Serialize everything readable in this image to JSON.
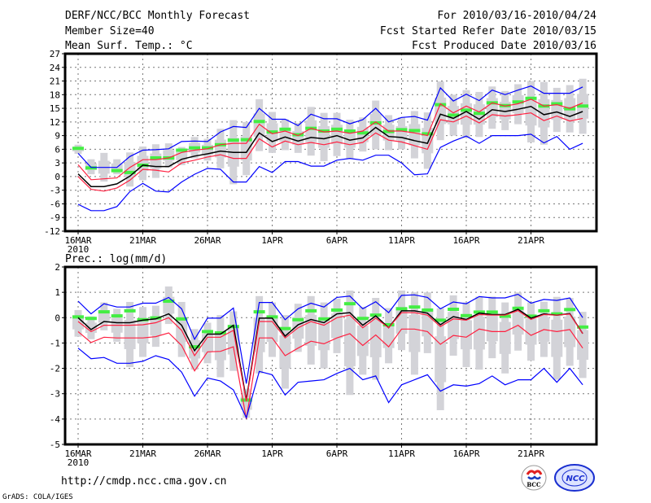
{
  "header": {
    "title": "DERF/NCC/BCC Monthly Forecast",
    "member_size": "Member Size=40",
    "variable": "Mean Surf. Temp.: °C",
    "period": "For 2010/03/16-2010/04/24",
    "start_date": "Fcst Started Refer Date 2010/03/15",
    "produced_date": "Fcst Produced Date 2010/03/16"
  },
  "footer": {
    "url": "http://cmdp.ncc.cma.gov.cn",
    "credit": "GrADS: COLA/IGES",
    "logos": [
      "BCC",
      "NCC"
    ]
  },
  "colors": {
    "mean": "#000000",
    "spread": "#ff2040",
    "extreme": "#0000ff",
    "box": "#d3d3d8",
    "marker": "#44ee44"
  },
  "chart_data": [
    {
      "type": "line",
      "title": "Mean Surf. Temp.: °C",
      "ylim": [
        -12,
        27
      ],
      "yticks": [
        "27",
        "24",
        "21",
        "18",
        "15",
        "12",
        "9",
        "6",
        "3",
        "0",
        "-3",
        "-6",
        "-9",
        "-12"
      ],
      "xtick_days": [
        0,
        5,
        10,
        15,
        20,
        25,
        30,
        35
      ],
      "xtick_labels": [
        "16MAR",
        "21MAR",
        "26MAR",
        "1APR",
        "6APR",
        "11APR",
        "16APR",
        "21APR"
      ],
      "xyear": "2010",
      "ndays": 40,
      "grid": true,
      "series": [
        {
          "name": "blue-upper",
          "color": "extreme",
          "values": [
            5.1,
            2.0,
            2.0,
            2.0,
            4.4,
            5.8,
            5.9,
            6.1,
            7.7,
            7.8,
            7.7,
            9.8,
            11.0,
            10.8,
            15.0,
            12.6,
            12.6,
            11.2,
            13.7,
            12.7,
            12.7,
            11.6,
            12.5,
            15.0,
            12.0,
            13.0,
            13.2,
            12.4,
            19.5,
            16.6,
            18.1,
            16.7,
            19.0,
            18.0,
            19.0,
            19.9,
            18.3,
            18.3,
            18.3,
            19.7
          ]
        },
        {
          "name": "red-upper",
          "color": "spread",
          "values": [
            2.6,
            -0.7,
            -0.5,
            -0.3,
            2.0,
            3.7,
            3.7,
            4.1,
            5.3,
            5.8,
            6.1,
            7.0,
            7.3,
            7.3,
            11.5,
            9.4,
            10.0,
            9.0,
            10.6,
            9.8,
            10.0,
            9.5,
            10.0,
            12.0,
            10.0,
            10.0,
            9.6,
            9.0,
            16.0,
            14.0,
            15.5,
            14.2,
            16.2,
            15.5,
            16.0,
            17.0,
            15.5,
            15.8,
            15.0,
            16.2
          ]
        },
        {
          "name": "mean",
          "color": "mean",
          "values": [
            0.6,
            -2.2,
            -2.2,
            -1.6,
            0.1,
            2.5,
            2.2,
            2.2,
            3.8,
            4.5,
            5.0,
            5.6,
            5.3,
            5.3,
            9.6,
            7.7,
            8.7,
            7.8,
            8.6,
            8.3,
            9.0,
            8.0,
            8.5,
            10.8,
            8.8,
            8.6,
            7.9,
            7.3,
            13.7,
            12.8,
            14.3,
            12.6,
            14.7,
            14.3,
            14.8,
            15.4,
            13.6,
            14.2,
            13.2,
            14.3
          ]
        },
        {
          "name": "red-lower",
          "color": "spread",
          "values": [
            0.0,
            -2.8,
            -3.2,
            -2.5,
            -0.8,
            1.6,
            1.4,
            1.0,
            3.0,
            3.6,
            4.3,
            4.8,
            4.0,
            4.0,
            8.3,
            6.5,
            7.8,
            7.0,
            7.5,
            7.0,
            7.6,
            7.0,
            7.5,
            9.6,
            8.0,
            7.6,
            6.8,
            6.0,
            12.5,
            12.0,
            13.3,
            11.8,
            13.6,
            13.3,
            13.6,
            14.0,
            12.3,
            13.3,
            12.2,
            12.8
          ]
        },
        {
          "name": "blue-lower",
          "color": "extreme",
          "values": [
            -6.1,
            -7.5,
            -7.5,
            -6.6,
            -3.3,
            -1.5,
            -3.2,
            -3.4,
            -1.2,
            0.5,
            1.8,
            1.6,
            -1.2,
            -1.2,
            2.2,
            0.9,
            3.3,
            3.3,
            2.3,
            2.3,
            3.6,
            4.0,
            3.6,
            4.7,
            4.7,
            3.0,
            0.4,
            0.6,
            6.4,
            7.8,
            8.9,
            7.3,
            9.0,
            9.0,
            9.0,
            9.3,
            7.4,
            8.8,
            6.0,
            7.3
          ]
        }
      ],
      "markers": [
        6.2,
        1.9,
        null,
        1.3,
        0.9,
        2.5,
        4.1,
        4.1,
        5.8,
        6.3,
        6.3,
        7.0,
        8.0,
        8.1,
        12.1,
        9.8,
        10.4,
        9.2,
        10.6,
        10.0,
        10.4,
        10.0,
        9.6,
        11.8,
        9.9,
        10.3,
        10.1,
        9.4,
        15.8,
        13.5,
        14.6,
        13.9,
        16.2,
        15.6,
        16.4,
        17.2,
        15.5,
        16.0,
        14.9,
        15.5
      ],
      "boxes": [
        [
          5,
          7
        ],
        [
          0.5,
          3.8
        ],
        [
          -1.1,
          5.2
        ],
        [
          0.5,
          3.8
        ],
        [
          -2.2,
          5.3
        ],
        [
          -0.8,
          6.6
        ],
        [
          -0.3,
          7.1
        ],
        [
          2,
          7.3
        ],
        [
          2.5,
          6.5
        ],
        [
          4,
          8.7
        ],
        [
          3.5,
          8.3
        ],
        [
          1.8,
          10.5
        ],
        [
          -1.7,
          12.4
        ],
        [
          0.3,
          12
        ],
        [
          5.6,
          17
        ],
        [
          5.2,
          14.2
        ],
        [
          5.8,
          12.6
        ],
        [
          5.2,
          11.8
        ],
        [
          4.6,
          15.3
        ],
        [
          3.4,
          14
        ],
        [
          4.5,
          14
        ],
        [
          4.0,
          12.5
        ],
        [
          5.5,
          13.0
        ],
        [
          6,
          16.7
        ],
        [
          5.8,
          13.5
        ],
        [
          6,
          13
        ],
        [
          4.0,
          14.4
        ],
        [
          1.7,
          14.1
        ],
        [
          8,
          20.9
        ],
        [
          9,
          18
        ],
        [
          8.5,
          19
        ],
        [
          8.7,
          18.6
        ],
        [
          10.5,
          19.8
        ],
        [
          10.2,
          18.8
        ],
        [
          11.5,
          20.3
        ],
        [
          7.5,
          21
        ],
        [
          7,
          20.8
        ],
        [
          9.8,
          19.5
        ],
        [
          9.7,
          20.1
        ],
        [
          9.4,
          21.5
        ]
      ]
    },
    {
      "type": "line",
      "title": "Prec.: log(mm/d)",
      "ylim": [
        -5,
        2
      ],
      "yticks": [
        "2",
        "1",
        "0",
        "-1",
        "-2",
        "-3",
        "-4",
        "-5"
      ],
      "xtick_days": [
        0,
        5,
        10,
        15,
        20,
        25,
        30,
        35
      ],
      "xtick_labels": [
        "16MAR",
        "21MAR",
        "26MAR",
        "1APR",
        "6APR",
        "11APR",
        "16APR",
        "21APR"
      ],
      "xyear": "2010",
      "ndays": 40,
      "grid": true,
      "series": [
        {
          "name": "blue-upper",
          "color": "extreme",
          "values": [
            0.65,
            0.15,
            0.55,
            0.42,
            0.42,
            0.57,
            0.57,
            0.8,
            0.35,
            -0.85,
            -0.02,
            -0.02,
            0.38,
            -2.6,
            0.6,
            0.6,
            -0.08,
            0.35,
            0.57,
            0.42,
            0.8,
            0.85,
            0.35,
            0.63,
            0.2,
            0.88,
            0.9,
            0.8,
            0.35,
            0.62,
            0.55,
            0.83,
            0.78,
            0.78,
            0.92,
            0.57,
            0.72,
            0.68,
            0.78,
            0.0
          ]
        },
        {
          "name": "mean",
          "color": "mean",
          "values": [
            0.0,
            -0.47,
            -0.15,
            -0.2,
            -0.2,
            -0.1,
            -0.05,
            0.15,
            -0.3,
            -1.3,
            -0.65,
            -0.65,
            -0.3,
            -3.25,
            -0.02,
            -0.02,
            -0.73,
            -0.28,
            -0.07,
            -0.2,
            0.15,
            0.2,
            -0.3,
            0.07,
            -0.4,
            0.27,
            0.27,
            0.18,
            -0.28,
            0.04,
            -0.07,
            0.18,
            0.12,
            0.12,
            0.33,
            -0.02,
            0.15,
            0.1,
            0.16,
            -0.63
          ]
        },
        {
          "name": "red-upper",
          "color": "spread",
          "values": [
            -0.15,
            -0.55,
            -0.3,
            -0.3,
            -0.3,
            -0.28,
            -0.2,
            0.0,
            -0.5,
            -1.5,
            -0.77,
            -0.77,
            -0.5,
            -3.3,
            -0.15,
            -0.15,
            -0.8,
            -0.4,
            -0.15,
            -0.3,
            0.0,
            0.1,
            -0.4,
            -0.02,
            -0.4,
            0.2,
            0.2,
            0.1,
            -0.35,
            -0.05,
            -0.1,
            0.12,
            0.1,
            0.1,
            0.28,
            -0.07,
            0.12,
            0.1,
            0.14,
            -0.63
          ]
        },
        {
          "name": "red-lower",
          "color": "spread",
          "values": [
            -0.55,
            -0.98,
            -0.77,
            -0.8,
            -0.8,
            -0.8,
            -0.75,
            -0.6,
            -1.1,
            -2.1,
            -1.35,
            -1.33,
            -1.15,
            -4.0,
            -0.8,
            -0.8,
            -1.5,
            -1.2,
            -0.93,
            -1.03,
            -0.8,
            -0.63,
            -1.1,
            -0.68,
            -1.15,
            -0.45,
            -0.45,
            -0.55,
            -1.05,
            -0.7,
            -0.77,
            -0.45,
            -0.55,
            -0.55,
            -0.3,
            -0.7,
            -0.47,
            -0.55,
            -0.47,
            -1.2
          ]
        },
        {
          "name": "blue-lower",
          "color": "extreme",
          "values": [
            -1.2,
            -1.62,
            -1.57,
            -1.8,
            -1.8,
            -1.72,
            -1.5,
            -1.65,
            -2.15,
            -3.1,
            -2.38,
            -2.5,
            -2.85,
            -3.95,
            -2.12,
            -2.25,
            -3.05,
            -2.55,
            -2.5,
            -2.45,
            -2.2,
            -2.0,
            -2.45,
            -2.3,
            -3.35,
            -2.65,
            -2.45,
            -2.25,
            -2.9,
            -2.65,
            -2.7,
            -2.6,
            -2.3,
            -2.65,
            -2.45,
            -2.45,
            -2.0,
            -2.55,
            -2.0,
            -2.65
          ]
        }
      ],
      "markers": [
        0.03,
        -0.03,
        0.23,
        0.07,
        0.27,
        -0.08,
        -0.01,
        0.65,
        -0.05,
        -1.15,
        -0.55,
        -0.6,
        -0.35,
        -3.25,
        0.23,
        0.03,
        -0.43,
        -0.08,
        0.27,
        -0.05,
        0.3,
        0.55,
        -0.03,
        0.1,
        -0.28,
        0.35,
        0.42,
        0.3,
        -0.1,
        0.33,
        0.08,
        0.22,
        0.22,
        0.06,
        0.37,
        0.06,
        0.27,
        0.15,
        0.32,
        -0.37
      ],
      "boxes": [
        [
          -0.75,
          0.3
        ],
        [
          -0.85,
          0.05
        ],
        [
          -0.5,
          0.6
        ],
        [
          -0.95,
          0.35
        ],
        [
          -1.95,
          0.62
        ],
        [
          -1.55,
          0.42
        ],
        [
          -1.15,
          0.47
        ],
        [
          -0.25,
          1.23
        ],
        [
          -1.55,
          0.62
        ],
        [
          -2.05,
          -0.45
        ],
        [
          -1.8,
          -0.2
        ],
        [
          -2.35,
          0.1
        ],
        [
          -2.1,
          0.25
        ],
        [
          -3.95,
          -2.8
        ],
        [
          -2.2,
          0.85
        ],
        [
          -1.55,
          0.6
        ],
        [
          -2.8,
          0.1
        ],
        [
          -1.35,
          0.55
        ],
        [
          -1.85,
          0.85
        ],
        [
          -2.0,
          0.6
        ],
        [
          -1.4,
          0.75
        ],
        [
          -3.05,
          1.07
        ],
        [
          -2.25,
          0.43
        ],
        [
          -2.45,
          0.78
        ],
        [
          -1.8,
          0.38
        ],
        [
          -1.28,
          1.07
        ],
        [
          -2.25,
          1.0
        ],
        [
          -1.4,
          1.0
        ],
        [
          -3.65,
          0.37
        ],
        [
          -1.5,
          0.88
        ],
        [
          -1.95,
          0.6
        ],
        [
          -2.05,
          0.83
        ],
        [
          -1.6,
          0.83
        ],
        [
          -2.2,
          0.6
        ],
        [
          -1.3,
          1.0
        ],
        [
          -1.7,
          0.6
        ],
        [
          -1.55,
          0.63
        ],
        [
          -2.45,
          0.82
        ],
        [
          -1.9,
          0.78
        ],
        [
          -2.38,
          0.23
        ]
      ]
    }
  ]
}
